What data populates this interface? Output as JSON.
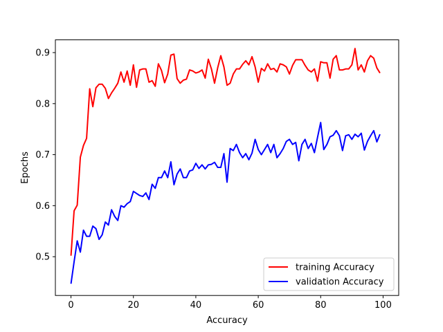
{
  "chart_data": {
    "type": "line",
    "xlabel": "Accuracy",
    "ylabel": "Epochs",
    "xlim": [
      -5,
      105
    ],
    "ylim": [
      0.424,
      0.925
    ],
    "xticks": [
      0,
      20,
      40,
      60,
      80,
      100
    ],
    "yticks": [
      0.5,
      0.6,
      0.7,
      0.8,
      0.9
    ],
    "grid": false,
    "legend_position": "lower-right",
    "series": [
      {
        "name": "training Accuracy",
        "color": "#ff0000",
        "values": [
          0.502,
          0.59,
          0.601,
          0.695,
          0.718,
          0.732,
          0.829,
          0.794,
          0.831,
          0.838,
          0.838,
          0.83,
          0.81,
          0.821,
          0.83,
          0.84,
          0.862,
          0.842,
          0.864,
          0.836,
          0.876,
          0.832,
          0.866,
          0.868,
          0.868,
          0.842,
          0.845,
          0.834,
          0.878,
          0.865,
          0.841,
          0.858,
          0.895,
          0.897,
          0.849,
          0.84,
          0.846,
          0.848,
          0.866,
          0.864,
          0.86,
          0.862,
          0.866,
          0.85,
          0.887,
          0.868,
          0.84,
          0.87,
          0.894,
          0.872,
          0.836,
          0.84,
          0.858,
          0.868,
          0.868,
          0.877,
          0.884,
          0.876,
          0.892,
          0.872,
          0.842,
          0.869,
          0.864,
          0.878,
          0.867,
          0.869,
          0.862,
          0.878,
          0.876,
          0.872,
          0.858,
          0.875,
          0.886,
          0.886,
          0.886,
          0.875,
          0.866,
          0.862,
          0.868,
          0.844,
          0.882,
          0.88,
          0.88,
          0.85,
          0.887,
          0.894,
          0.866,
          0.866,
          0.868,
          0.868,
          0.876,
          0.908,
          0.866,
          0.876,
          0.862,
          0.884,
          0.894,
          0.889,
          0.87,
          0.86
        ]
      },
      {
        "name": "validation Accuracy",
        "color": "#0000ff",
        "values": [
          0.447,
          0.49,
          0.531,
          0.509,
          0.552,
          0.54,
          0.54,
          0.56,
          0.555,
          0.534,
          0.543,
          0.568,
          0.562,
          0.592,
          0.579,
          0.571,
          0.6,
          0.597,
          0.604,
          0.608,
          0.628,
          0.624,
          0.62,
          0.618,
          0.625,
          0.612,
          0.642,
          0.634,
          0.655,
          0.655,
          0.668,
          0.655,
          0.686,
          0.641,
          0.662,
          0.672,
          0.655,
          0.655,
          0.668,
          0.67,
          0.683,
          0.673,
          0.68,
          0.672,
          0.68,
          0.681,
          0.685,
          0.675,
          0.675,
          0.702,
          0.646,
          0.712,
          0.708,
          0.72,
          0.704,
          0.694,
          0.702,
          0.69,
          0.703,
          0.73,
          0.71,
          0.7,
          0.71,
          0.72,
          0.704,
          0.72,
          0.694,
          0.702,
          0.712,
          0.726,
          0.73,
          0.72,
          0.724,
          0.688,
          0.72,
          0.73,
          0.712,
          0.722,
          0.704,
          0.734,
          0.763,
          0.71,
          0.72,
          0.735,
          0.738,
          0.747,
          0.737,
          0.708,
          0.737,
          0.739,
          0.73,
          0.74,
          0.735,
          0.742,
          0.709,
          0.726,
          0.737,
          0.747,
          0.725,
          0.74
        ]
      }
    ]
  }
}
